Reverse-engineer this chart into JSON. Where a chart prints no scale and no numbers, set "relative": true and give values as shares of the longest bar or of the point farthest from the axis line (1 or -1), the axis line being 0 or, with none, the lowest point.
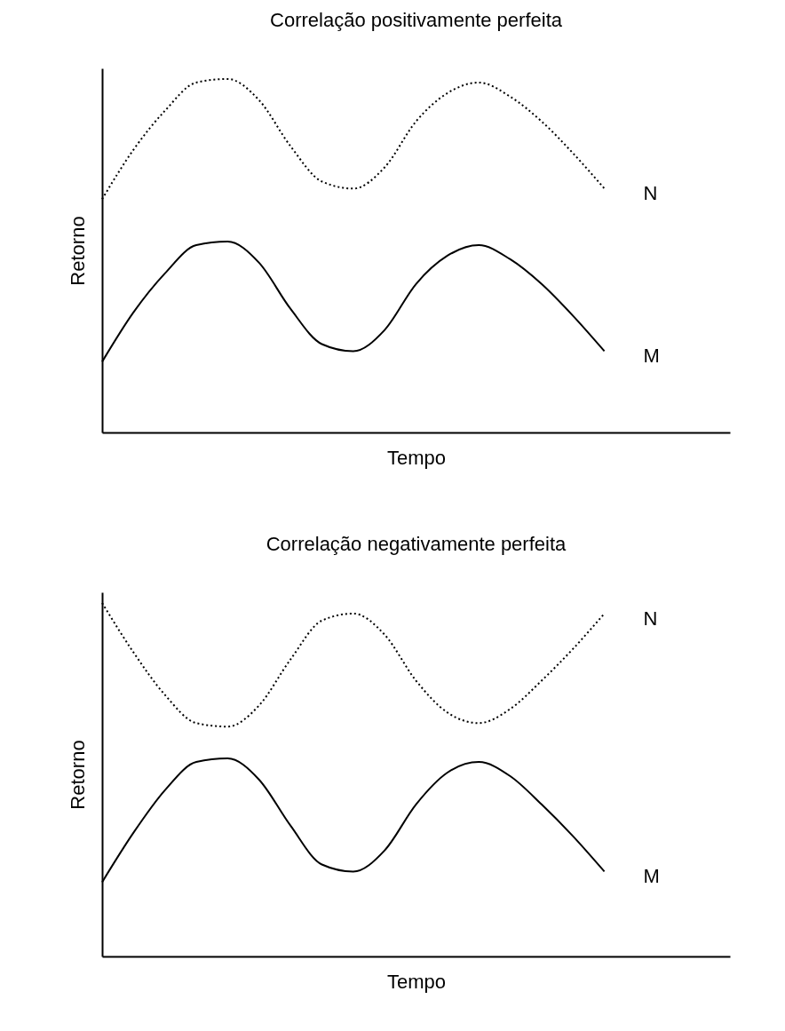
{
  "chart_data": [
    {
      "type": "line",
      "title": "Correlação positivamente perfeita",
      "xlabel": "Tempo",
      "ylabel": "Retorno",
      "relative": true,
      "categories": [
        null,
        null,
        null,
        null,
        null,
        null,
        null,
        null,
        null,
        null,
        null,
        null,
        null,
        null,
        null,
        null,
        null
      ],
      "series": [
        {
          "name": "N",
          "color": "#000000",
          "line_style": "dotted",
          "values": [
            0.66,
            0.8,
            0.91,
            0.99,
            1.0,
            0.94,
            0.81,
            0.71,
            0.69,
            0.75,
            0.88,
            0.96,
            0.99,
            0.95,
            0.88,
            0.79,
            0.69
          ]
        },
        {
          "name": "M",
          "color": "#000000",
          "line_style": "solid",
          "values": [
            0.2,
            0.34,
            0.45,
            0.53,
            0.54,
            0.48,
            0.35,
            0.25,
            0.23,
            0.29,
            0.42,
            0.5,
            0.53,
            0.49,
            0.42,
            0.33,
            0.23
          ]
        }
      ]
    },
    {
      "type": "line",
      "title": "Correlação negativamente perfeita",
      "xlabel": "Tempo",
      "ylabel": "Retorno",
      "relative": true,
      "categories": [
        null,
        null,
        null,
        null,
        null,
        null,
        null,
        null,
        null,
        null,
        null,
        null,
        null,
        null,
        null,
        null,
        null
      ],
      "series": [
        {
          "name": "N",
          "color": "#000000",
          "line_style": "dotted",
          "values": [
            1.0,
            0.86,
            0.74,
            0.66,
            0.65,
            0.71,
            0.84,
            0.95,
            0.97,
            0.91,
            0.78,
            0.69,
            0.66,
            0.7,
            0.78,
            0.87,
            0.97
          ]
        },
        {
          "name": "M",
          "color": "#000000",
          "line_style": "solid",
          "values": [
            0.21,
            0.35,
            0.47,
            0.55,
            0.56,
            0.5,
            0.37,
            0.26,
            0.24,
            0.3,
            0.43,
            0.52,
            0.55,
            0.51,
            0.43,
            0.34,
            0.24
          ]
        }
      ]
    }
  ]
}
